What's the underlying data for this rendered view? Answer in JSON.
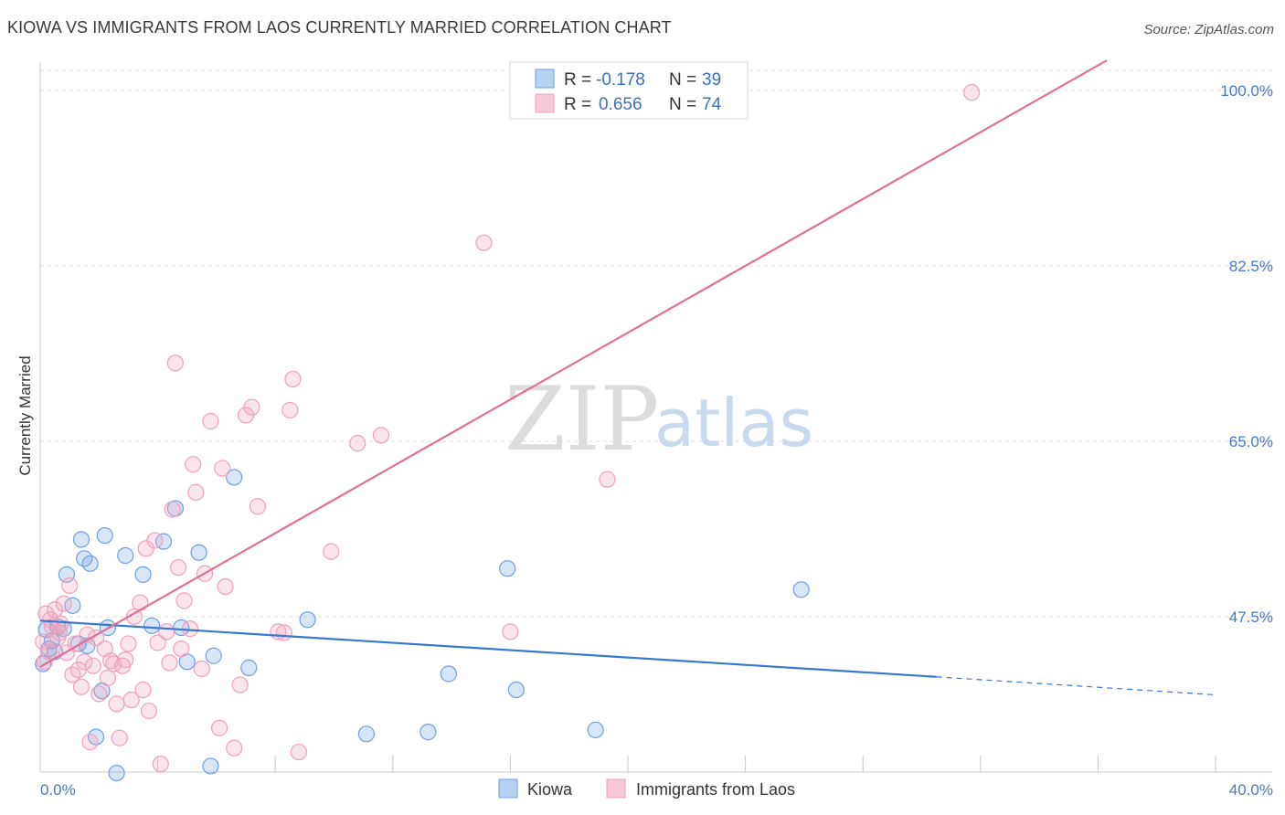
{
  "title": "KIOWA VS IMMIGRANTS FROM LAOS CURRENTLY MARRIED CORRELATION CHART",
  "source": "Source: ZipAtlas.com",
  "watermark": {
    "zip": "ZIP",
    "atlas": "atlas"
  },
  "chart_data": {
    "type": "scatter",
    "xlabel": "",
    "ylabel": "Currently Married",
    "xlim": [
      0,
      40
    ],
    "ylim": [
      32,
      102
    ],
    "x_tick_labels": [
      "0.0%",
      "40.0%"
    ],
    "y_ticks": [
      47.5,
      65.0,
      82.5,
      100.0
    ],
    "y_tick_labels": [
      "47.5%",
      "65.0%",
      "82.5%",
      "100.0%"
    ],
    "legend": [
      {
        "label_r": "R =",
        "r": "-0.178",
        "label_n": "N =",
        "n": "39",
        "color": "#6fa0e0"
      },
      {
        "label_r": "R =",
        "r": "0.656",
        "label_n": "N =",
        "n": "74",
        "color": "#f0a0bb"
      }
    ],
    "series": [
      {
        "name": "Kiowa",
        "color": "#6fa0e0",
        "line_color": "#3a78cf",
        "trend": {
          "x0": 0,
          "y0": 47.1,
          "x1": 30.5,
          "y1": 41.5,
          "dash_x1": 40,
          "dash_y1": 39.7
        },
        "points": [
          [
            0.2,
            46.2
          ],
          [
            0.3,
            44.3
          ],
          [
            0.5,
            44.0
          ],
          [
            0.6,
            46.5
          ],
          [
            0.9,
            51.7
          ],
          [
            1.1,
            48.6
          ],
          [
            1.3,
            44.8
          ],
          [
            1.4,
            55.2
          ],
          [
            1.5,
            53.3
          ],
          [
            1.7,
            52.8
          ],
          [
            1.9,
            35.5
          ],
          [
            2.1,
            40.1
          ],
          [
            2.2,
            55.6
          ],
          [
            2.3,
            46.4
          ],
          [
            2.6,
            31.9
          ],
          [
            2.9,
            53.6
          ],
          [
            3.5,
            51.7
          ],
          [
            3.8,
            46.6
          ],
          [
            4.2,
            55.0
          ],
          [
            4.6,
            58.3
          ],
          [
            4.8,
            46.4
          ],
          [
            5.0,
            43.0
          ],
          [
            5.4,
            53.9
          ],
          [
            5.8,
            32.6
          ],
          [
            5.9,
            43.6
          ],
          [
            6.6,
            61.4
          ],
          [
            7.1,
            42.4
          ],
          [
            9.1,
            47.2
          ],
          [
            11.1,
            35.8
          ],
          [
            13.2,
            36.0
          ],
          [
            13.9,
            41.8
          ],
          [
            15.9,
            52.3
          ],
          [
            16.2,
            40.2
          ],
          [
            18.9,
            36.2
          ],
          [
            25.9,
            50.2
          ],
          [
            0.1,
            42.8
          ],
          [
            0.4,
            45.1
          ],
          [
            0.8,
            46.3
          ],
          [
            1.6,
            44.6
          ]
        ]
      },
      {
        "name": "Immigrants from Laos",
        "color": "#f0a0bb",
        "line_color": "#e0709a",
        "trend": {
          "x0": 0,
          "y0": 42.5,
          "x1": 36.3,
          "y1": 103.0
        },
        "points": [
          [
            0.1,
            45.0
          ],
          [
            0.2,
            47.8
          ],
          [
            0.3,
            44.0
          ],
          [
            0.4,
            46.5
          ],
          [
            0.5,
            48.2
          ],
          [
            0.6,
            45.4
          ],
          [
            0.7,
            46.8
          ],
          [
            0.8,
            48.8
          ],
          [
            0.9,
            43.9
          ],
          [
            1.0,
            50.6
          ],
          [
            1.1,
            41.7
          ],
          [
            1.2,
            44.8
          ],
          [
            1.4,
            40.5
          ],
          [
            1.5,
            43.0
          ],
          [
            1.6,
            45.7
          ],
          [
            1.7,
            35.0
          ],
          [
            1.8,
            42.6
          ],
          [
            1.9,
            45.4
          ],
          [
            2.0,
            39.8
          ],
          [
            2.2,
            44.3
          ],
          [
            2.3,
            41.4
          ],
          [
            2.4,
            43.1
          ],
          [
            2.5,
            42.8
          ],
          [
            2.6,
            38.8
          ],
          [
            2.7,
            35.4
          ],
          [
            2.8,
            42.6
          ],
          [
            3.0,
            44.8
          ],
          [
            3.1,
            39.2
          ],
          [
            3.2,
            47.5
          ],
          [
            3.4,
            48.9
          ],
          [
            3.5,
            40.2
          ],
          [
            3.6,
            54.3
          ],
          [
            3.7,
            38.1
          ],
          [
            3.9,
            55.1
          ],
          [
            4.0,
            44.9
          ],
          [
            4.1,
            32.8
          ],
          [
            4.3,
            46.0
          ],
          [
            4.4,
            42.9
          ],
          [
            4.5,
            58.2
          ],
          [
            4.6,
            72.8
          ],
          [
            4.7,
            52.4
          ],
          [
            4.8,
            44.3
          ],
          [
            4.9,
            49.1
          ],
          [
            5.1,
            46.3
          ],
          [
            5.2,
            62.7
          ],
          [
            5.3,
            59.9
          ],
          [
            5.5,
            42.3
          ],
          [
            5.6,
            51.8
          ],
          [
            5.8,
            67.0
          ],
          [
            6.1,
            36.4
          ],
          [
            6.2,
            62.3
          ],
          [
            6.3,
            50.5
          ],
          [
            6.6,
            34.4
          ],
          [
            6.8,
            40.7
          ],
          [
            7.0,
            67.6
          ],
          [
            7.2,
            68.4
          ],
          [
            7.4,
            58.5
          ],
          [
            8.1,
            46.0
          ],
          [
            8.3,
            45.9
          ],
          [
            8.5,
            68.1
          ],
          [
            8.6,
            71.2
          ],
          [
            8.8,
            34.0
          ],
          [
            9.9,
            54.0
          ],
          [
            10.8,
            64.8
          ],
          [
            11.6,
            65.6
          ],
          [
            15.1,
            84.8
          ],
          [
            16.0,
            46.0
          ],
          [
            19.3,
            61.2
          ],
          [
            31.7,
            99.8
          ],
          [
            0.15,
            43.0
          ],
          [
            0.35,
            47.2
          ],
          [
            0.65,
            45.9
          ],
          [
            1.3,
            42.2
          ],
          [
            2.9,
            43.2
          ]
        ]
      }
    ]
  }
}
